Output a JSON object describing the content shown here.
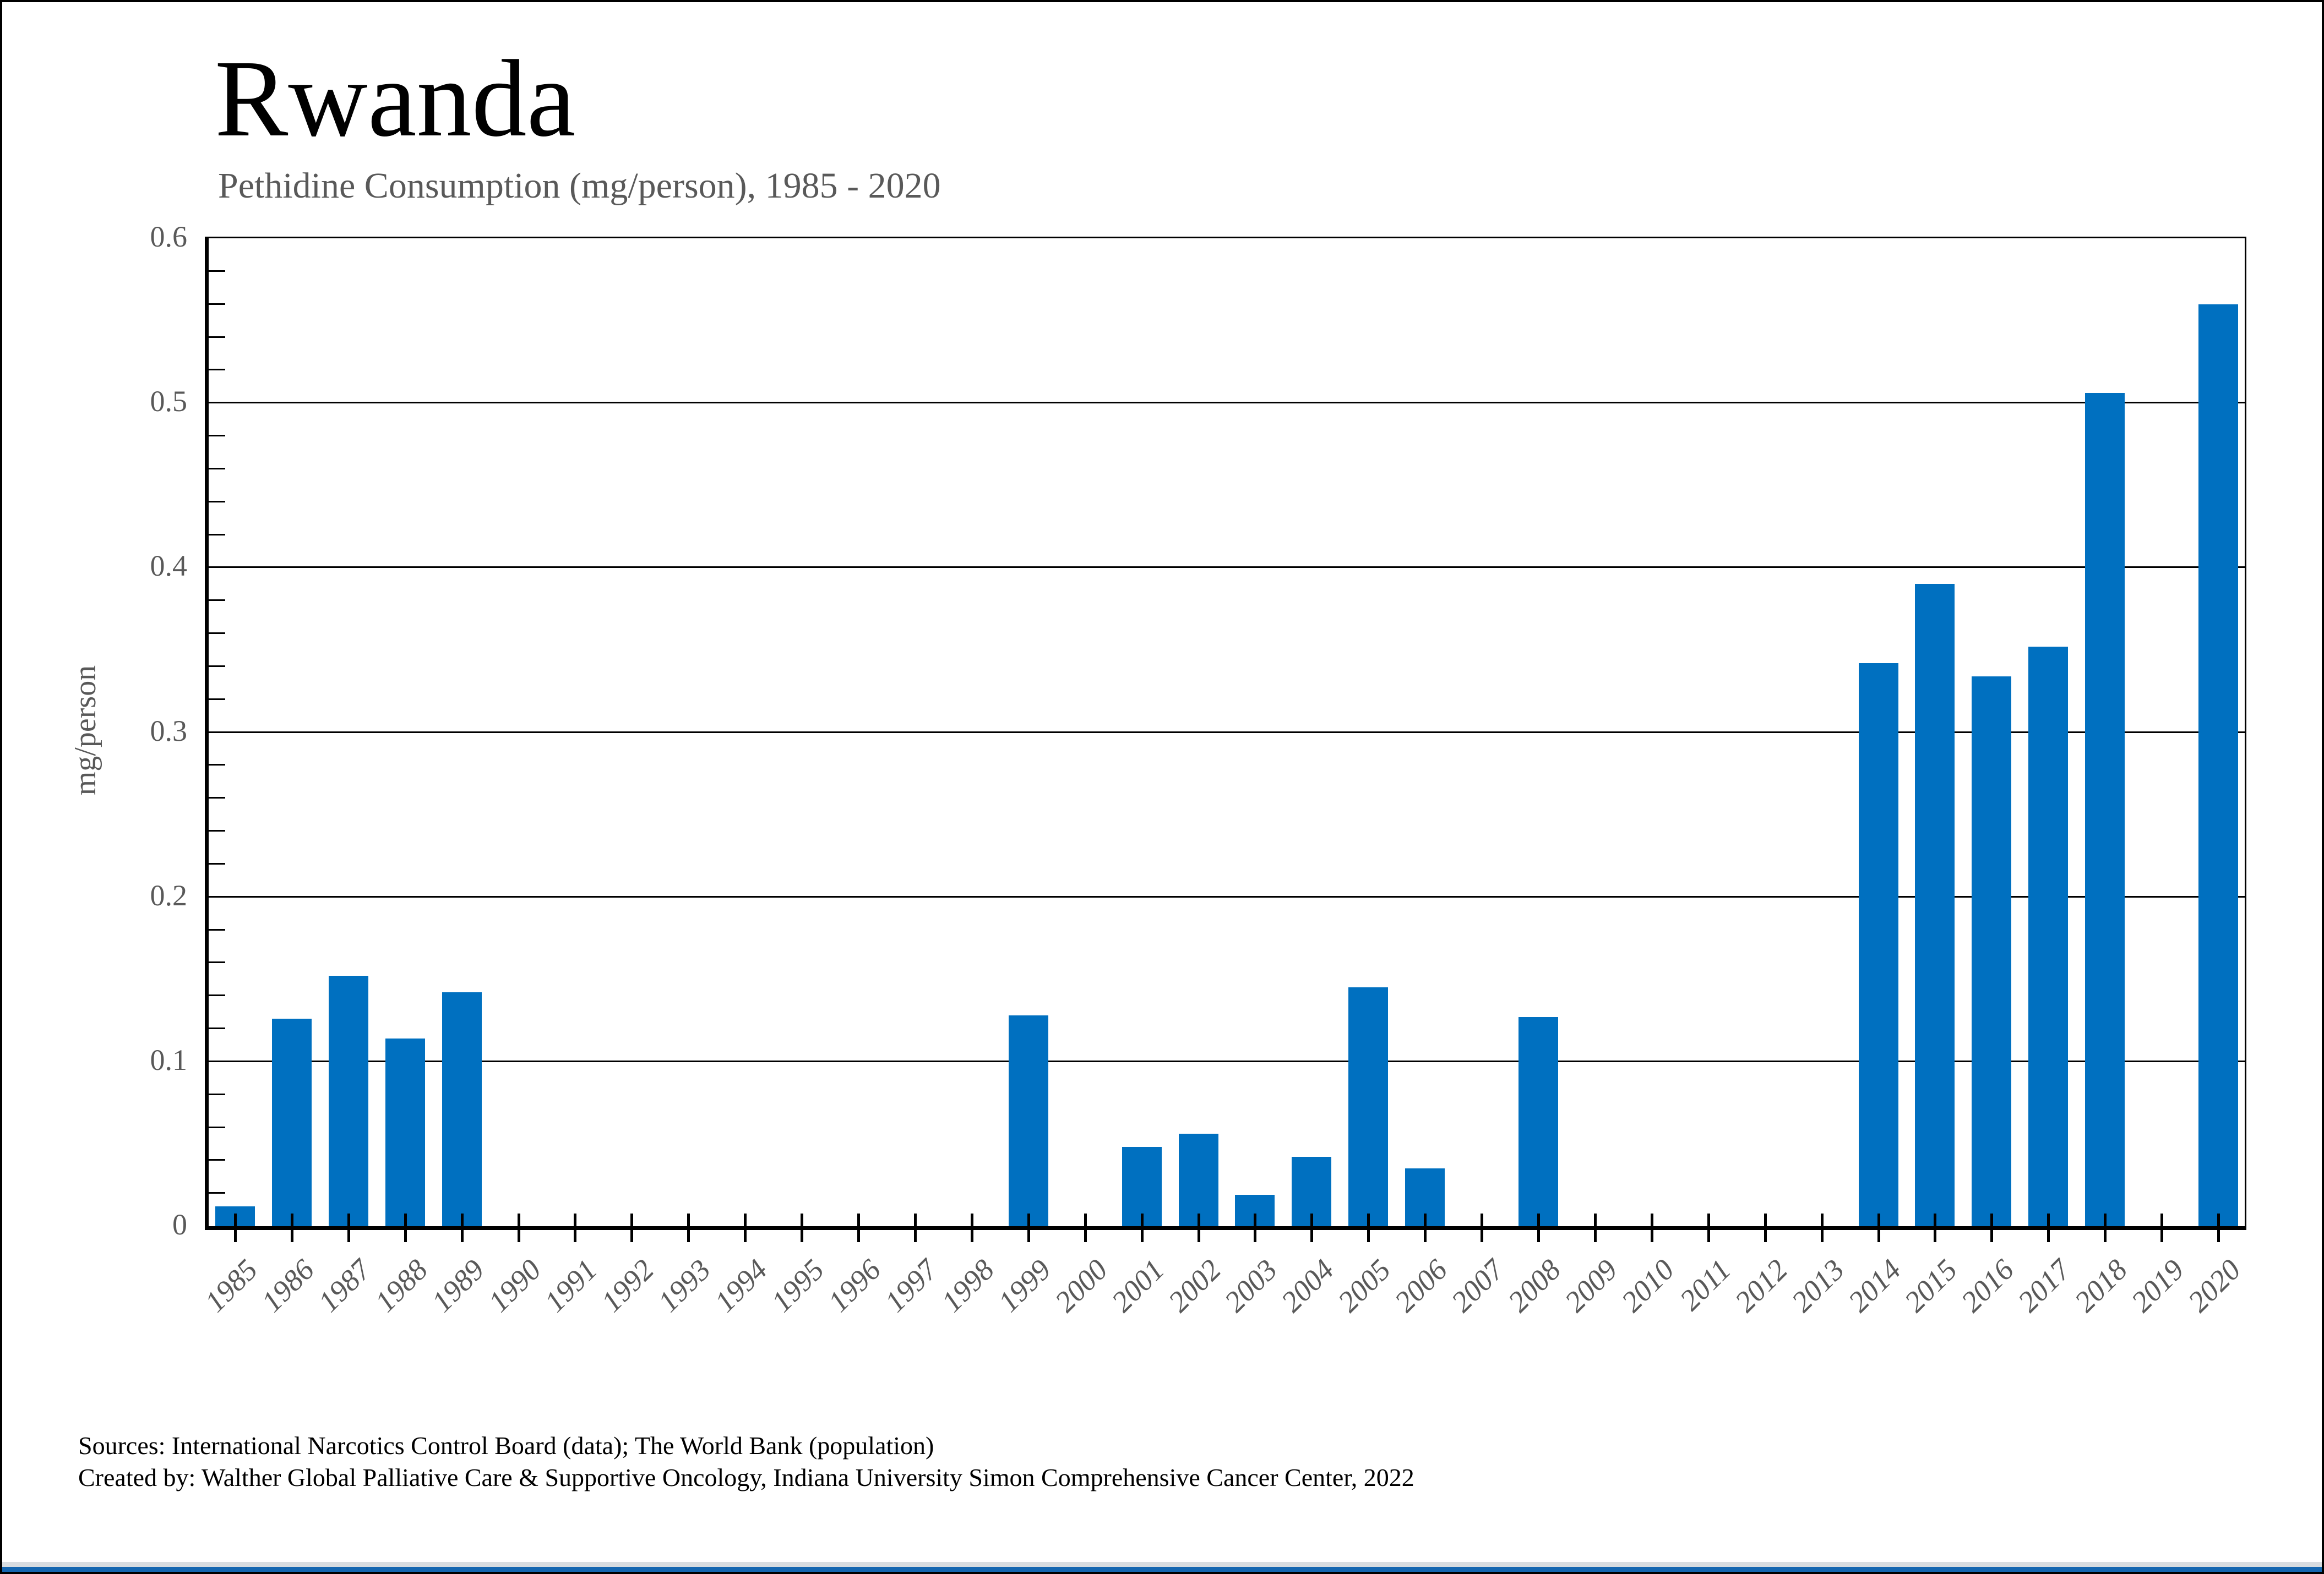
{
  "header": {
    "title": "Rwanda",
    "subtitle": "Pethidine Consumption (mg/person), 1985 - 2020"
  },
  "chart_data": {
    "type": "bar",
    "title": "Rwanda",
    "subtitle": "Pethidine Consumption (mg/person), 1985 - 2020",
    "xlabel": "",
    "ylabel": "mg/person",
    "ylim": [
      0,
      0.6
    ],
    "yticks": [
      0,
      0.1,
      0.2,
      0.3,
      0.4,
      0.5,
      0.6
    ],
    "ytick_labels": [
      "0",
      "0.1",
      "0.2",
      "0.3",
      "0.4",
      "0.5",
      "0.6"
    ],
    "minor_tick_step": 0.02,
    "grid": "horizontal-major",
    "legend": "none",
    "bar_color": "#0070C0",
    "categories": [
      "1985",
      "1986",
      "1987",
      "1988",
      "1989",
      "1990",
      "1991",
      "1992",
      "1993",
      "1994",
      "1995",
      "1996",
      "1997",
      "1998",
      "1999",
      "2000",
      "2001",
      "2002",
      "2003",
      "2004",
      "2005",
      "2006",
      "2007",
      "2008",
      "2009",
      "2010",
      "2011",
      "2012",
      "2013",
      "2014",
      "2015",
      "2016",
      "2017",
      "2018",
      "2019",
      "2020"
    ],
    "values": [
      0.012,
      0.126,
      0.152,
      0.114,
      0.142,
      0,
      0,
      0,
      0,
      0,
      0,
      0,
      0,
      0,
      0.128,
      0,
      0.048,
      0.056,
      0.019,
      0.042,
      0.145,
      0.035,
      0,
      0.127,
      0,
      0,
      0,
      0,
      0,
      0.342,
      0.39,
      0.334,
      0.352,
      0.506,
      0,
      0.56
    ]
  },
  "footer": {
    "line1": "Sources: International Narcotics Control Board (data); The World Bank (population)",
    "line2": "Created by: Walther Global Palliative Care & Supportive Oncology, Indiana University Simon Comprehensive Cancer Center, 2022"
  },
  "colors": {
    "bar": "#0070C0",
    "text_gray": "#595959",
    "axis_black": "#000000",
    "bottom_strip_blue": "#1566B0",
    "bottom_strip_gray": "#D8DCE0"
  }
}
